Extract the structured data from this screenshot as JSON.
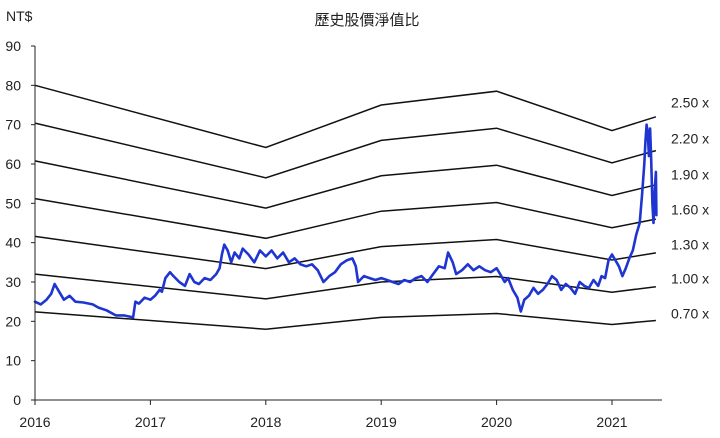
{
  "chart_data": {
    "type": "line",
    "title": "歷史股價淨值比",
    "ylabel": "NT$",
    "xlabel": "",
    "xlim": [
      2016,
      2021.38
    ],
    "ylim": [
      0,
      90
    ],
    "x_ticks": [
      "2016",
      "2017",
      "2018",
      "2019",
      "2020",
      "2021"
    ],
    "y_ticks": [
      "0",
      "10",
      "20",
      "30",
      "40",
      "50",
      "60",
      "70",
      "80",
      "90"
    ],
    "grid": false,
    "bands": [
      {
        "name": "0.70 x",
        "points": [
          [
            2016,
            22.4
          ],
          [
            2018,
            18.0
          ],
          [
            2019,
            21.0
          ],
          [
            2020,
            22.0
          ],
          [
            2021,
            19.2
          ],
          [
            2021.38,
            20.2
          ]
        ]
      },
      {
        "name": "1.00 x",
        "points": [
          [
            2016,
            32.0
          ],
          [
            2018,
            25.7
          ],
          [
            2019,
            30.0
          ],
          [
            2020,
            31.4
          ],
          [
            2021,
            27.4
          ],
          [
            2021.38,
            28.8
          ]
        ]
      },
      {
        "name": "1.30 x",
        "points": [
          [
            2016,
            41.6
          ],
          [
            2018,
            33.4
          ],
          [
            2019,
            39.0
          ],
          [
            2020,
            40.8
          ],
          [
            2021,
            35.6
          ],
          [
            2021.38,
            37.4
          ]
        ]
      },
      {
        "name": "1.60 x",
        "points": [
          [
            2016,
            51.2
          ],
          [
            2018,
            41.1
          ],
          [
            2019,
            48.0
          ],
          [
            2020,
            50.2
          ],
          [
            2021,
            43.8
          ],
          [
            2021.38,
            46.0
          ]
        ]
      },
      {
        "name": "1.90 x",
        "points": [
          [
            2016,
            60.8
          ],
          [
            2018,
            48.8
          ],
          [
            2019,
            57.0
          ],
          [
            2020,
            59.7
          ],
          [
            2021,
            52.0
          ],
          [
            2021.38,
            54.7
          ]
        ]
      },
      {
        "name": "2.20 x",
        "points": [
          [
            2016,
            70.4
          ],
          [
            2018,
            56.5
          ],
          [
            2019,
            66.0
          ],
          [
            2020,
            69.1
          ],
          [
            2021,
            60.3
          ],
          [
            2021.38,
            63.4
          ]
        ]
      },
      {
        "name": "2.50 x",
        "points": [
          [
            2016,
            80.0
          ],
          [
            2018,
            64.2
          ],
          [
            2019,
            75.0
          ],
          [
            2020,
            78.5
          ],
          [
            2021,
            68.5
          ],
          [
            2021.38,
            72.0
          ]
        ]
      }
    ],
    "series": [
      {
        "name": "",
        "color": "#1f35d1",
        "points": [
          [
            2016.0,
            25.0
          ],
          [
            2016.05,
            24.3
          ],
          [
            2016.1,
            25.5
          ],
          [
            2016.14,
            27.0
          ],
          [
            2016.17,
            29.5
          ],
          [
            2016.21,
            27.5
          ],
          [
            2016.25,
            25.5
          ],
          [
            2016.3,
            26.5
          ],
          [
            2016.35,
            25.0
          ],
          [
            2016.42,
            24.8
          ],
          [
            2016.5,
            24.3
          ],
          [
            2016.55,
            23.5
          ],
          [
            2016.62,
            22.8
          ],
          [
            2016.7,
            21.5
          ],
          [
            2016.77,
            21.5
          ],
          [
            2016.85,
            21.0
          ],
          [
            2016.87,
            25.0
          ],
          [
            2016.9,
            24.5
          ],
          [
            2016.95,
            26.0
          ],
          [
            2017.0,
            25.5
          ],
          [
            2017.04,
            26.5
          ],
          [
            2017.08,
            28.0
          ],
          [
            2017.1,
            27.5
          ],
          [
            2017.13,
            31.0
          ],
          [
            2017.17,
            32.5
          ],
          [
            2017.2,
            31.5
          ],
          [
            2017.25,
            30.0
          ],
          [
            2017.3,
            29.0
          ],
          [
            2017.34,
            32.0
          ],
          [
            2017.38,
            30.0
          ],
          [
            2017.42,
            29.5
          ],
          [
            2017.47,
            31.0
          ],
          [
            2017.52,
            30.5
          ],
          [
            2017.57,
            32.0
          ],
          [
            2017.6,
            33.5
          ],
          [
            2017.62,
            37.0
          ],
          [
            2017.64,
            39.5
          ],
          [
            2017.67,
            38.0
          ],
          [
            2017.7,
            35.0
          ],
          [
            2017.73,
            37.5
          ],
          [
            2017.77,
            36.0
          ],
          [
            2017.8,
            38.5
          ],
          [
            2017.85,
            37.0
          ],
          [
            2017.9,
            35.0
          ],
          [
            2017.95,
            38.0
          ],
          [
            2018.0,
            36.5
          ],
          [
            2018.05,
            38.0
          ],
          [
            2018.1,
            36.0
          ],
          [
            2018.15,
            37.5
          ],
          [
            2018.2,
            35.0
          ],
          [
            2018.25,
            36.0
          ],
          [
            2018.3,
            34.5
          ],
          [
            2018.35,
            34.0
          ],
          [
            2018.4,
            34.5
          ],
          [
            2018.45,
            33.0
          ],
          [
            2018.5,
            30.0
          ],
          [
            2018.55,
            31.5
          ],
          [
            2018.6,
            32.5
          ],
          [
            2018.65,
            34.5
          ],
          [
            2018.7,
            35.5
          ],
          [
            2018.75,
            36.0
          ],
          [
            2018.78,
            34.0
          ],
          [
            2018.8,
            30.0
          ],
          [
            2018.85,
            31.5
          ],
          [
            2018.9,
            31.0
          ],
          [
            2018.95,
            30.5
          ],
          [
            2019.0,
            31.0
          ],
          [
            2019.05,
            30.5
          ],
          [
            2019.1,
            30.0
          ],
          [
            2019.15,
            29.5
          ],
          [
            2019.2,
            30.5
          ],
          [
            2019.25,
            30.0
          ],
          [
            2019.3,
            31.0
          ],
          [
            2019.35,
            31.5
          ],
          [
            2019.4,
            30.0
          ],
          [
            2019.45,
            32.0
          ],
          [
            2019.5,
            34.0
          ],
          [
            2019.55,
            33.5
          ],
          [
            2019.58,
            37.5
          ],
          [
            2019.62,
            35.0
          ],
          [
            2019.65,
            32.0
          ],
          [
            2019.7,
            33.0
          ],
          [
            2019.75,
            34.5
          ],
          [
            2019.8,
            33.0
          ],
          [
            2019.85,
            34.0
          ],
          [
            2019.9,
            33.0
          ],
          [
            2019.95,
            32.5
          ],
          [
            2020.0,
            33.5
          ],
          [
            2020.03,
            32.0
          ],
          [
            2020.07,
            30.0
          ],
          [
            2020.1,
            31.0
          ],
          [
            2020.14,
            28.0
          ],
          [
            2020.18,
            26.0
          ],
          [
            2020.21,
            22.5
          ],
          [
            2020.24,
            25.5
          ],
          [
            2020.28,
            26.5
          ],
          [
            2020.32,
            28.5
          ],
          [
            2020.36,
            27.0
          ],
          [
            2020.4,
            28.0
          ],
          [
            2020.44,
            29.5
          ],
          [
            2020.48,
            31.5
          ],
          [
            2020.52,
            30.5
          ],
          [
            2020.56,
            28.0
          ],
          [
            2020.6,
            29.5
          ],
          [
            2020.64,
            28.5
          ],
          [
            2020.68,
            27.0
          ],
          [
            2020.72,
            30.0
          ],
          [
            2020.76,
            29.0
          ],
          [
            2020.8,
            28.5
          ],
          [
            2020.84,
            30.5
          ],
          [
            2020.88,
            29.0
          ],
          [
            2020.91,
            31.5
          ],
          [
            2020.94,
            31.0
          ],
          [
            2020.97,
            35.5
          ],
          [
            2021.0,
            37.0
          ],
          [
            2021.03,
            35.5
          ],
          [
            2021.06,
            34.0
          ],
          [
            2021.09,
            31.5
          ],
          [
            2021.12,
            33.5
          ],
          [
            2021.15,
            36.0
          ],
          [
            2021.18,
            38.0
          ],
          [
            2021.21,
            42.0
          ],
          [
            2021.24,
            45.0
          ],
          [
            2021.26,
            52.0
          ],
          [
            2021.28,
            60.0
          ],
          [
            2021.29,
            66.0
          ],
          [
            2021.3,
            70.0
          ],
          [
            2021.31,
            68.0
          ],
          [
            2021.32,
            62.0
          ],
          [
            2021.33,
            69.0
          ],
          [
            2021.34,
            61.0
          ],
          [
            2021.35,
            50.0
          ],
          [
            2021.36,
            45.0
          ],
          [
            2021.37,
            53.0
          ],
          [
            2021.38,
            58.0
          ],
          [
            2021.385,
            47.0
          ]
        ]
      }
    ]
  }
}
